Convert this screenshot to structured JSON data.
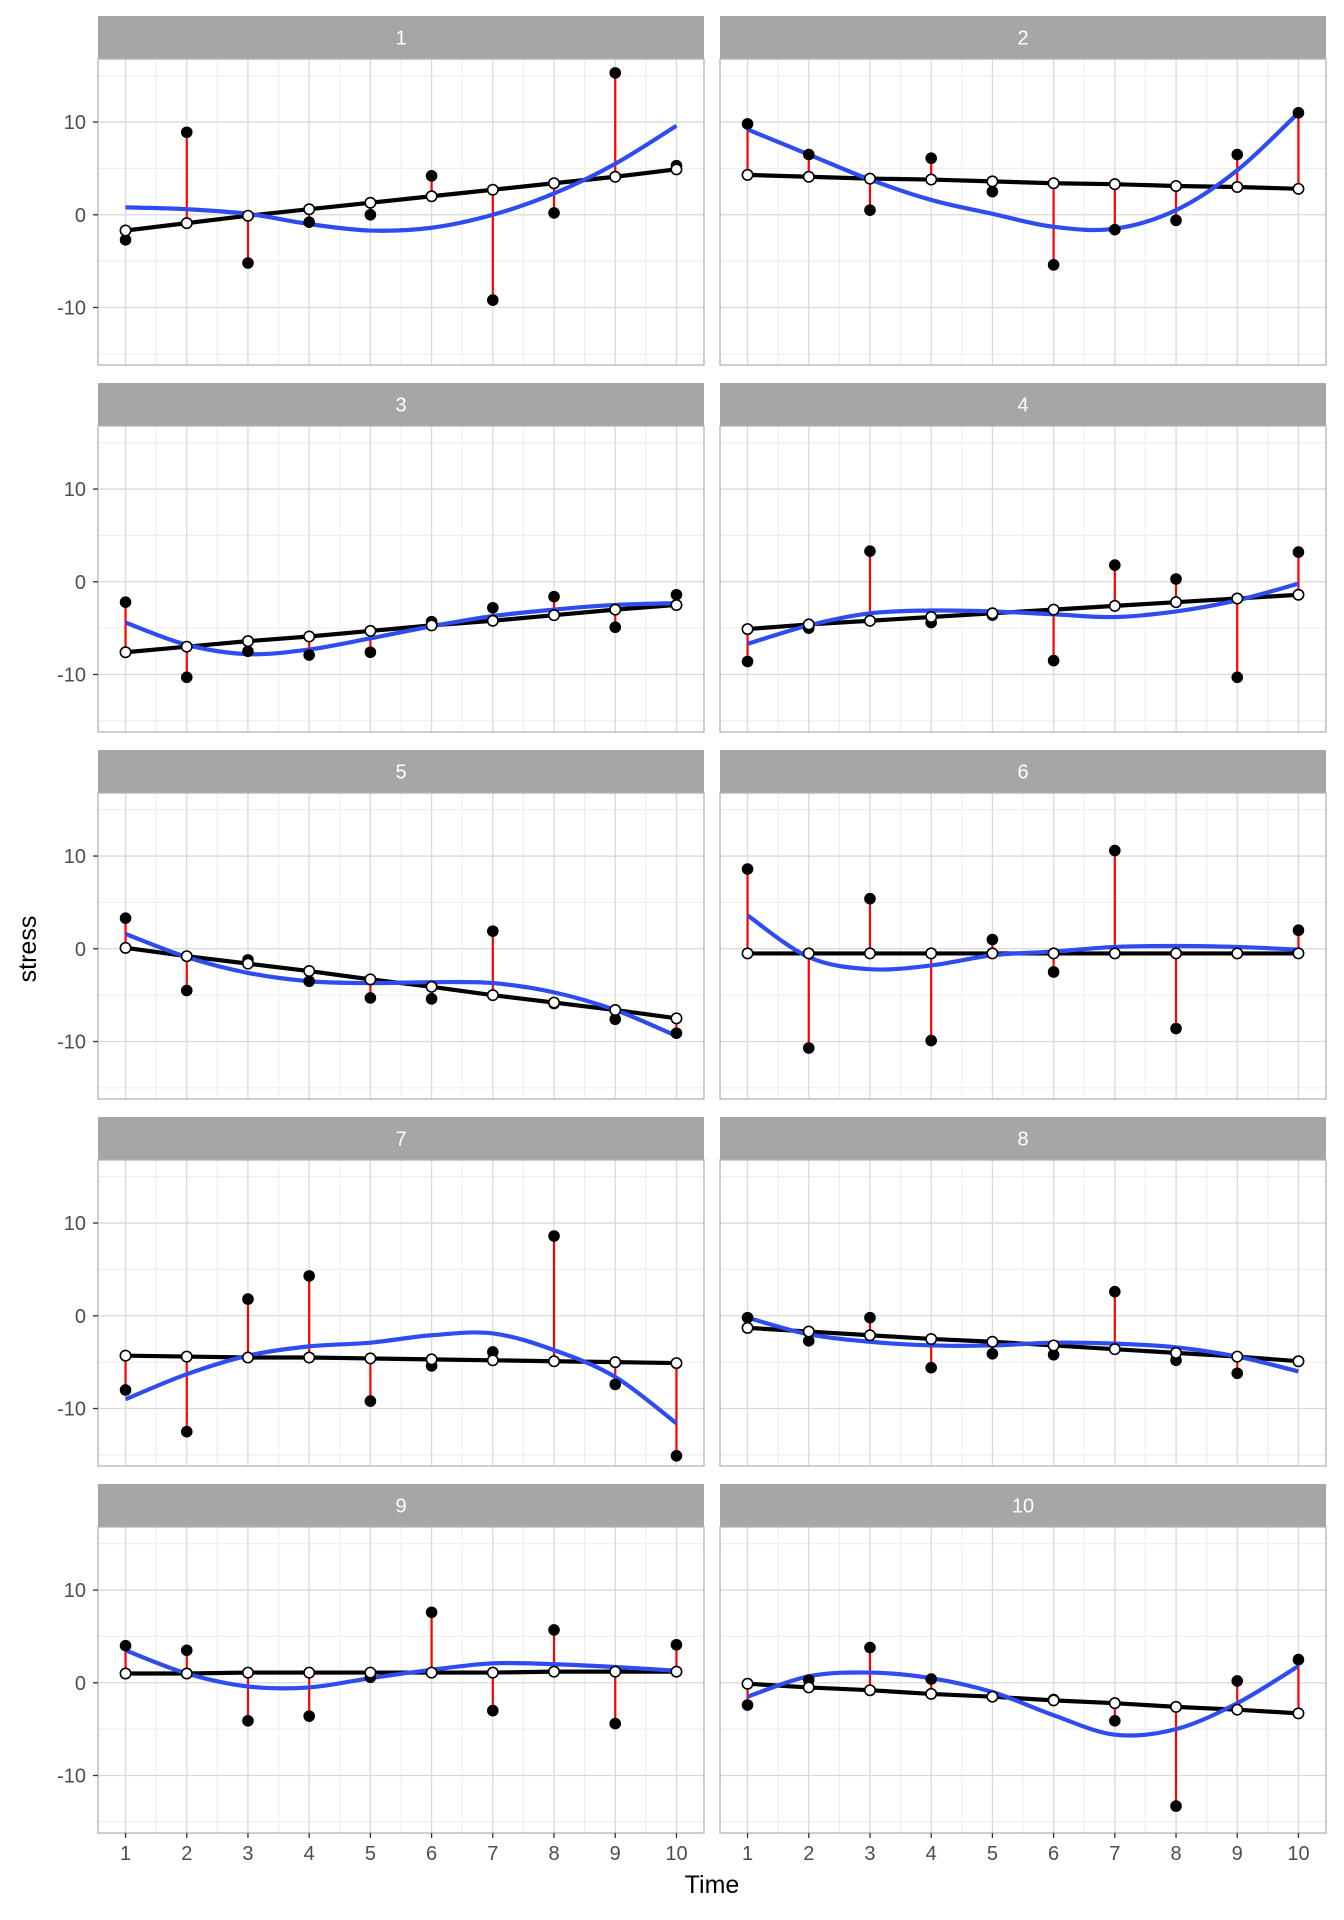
{
  "chart_data": {
    "type": "faceted_scatter_line",
    "xlabel": "Time",
    "ylabel": "stress",
    "x_ticks": [
      1,
      2,
      3,
      4,
      5,
      6,
      7,
      8,
      9,
      10
    ],
    "y_ticks": [
      -10,
      0,
      10
    ],
    "xlim": [
      0.55,
      10.45
    ],
    "ylim": [
      -16.2,
      16.8
    ],
    "grid": true,
    "colors": {
      "strip_background": "#a6a6a6",
      "strip_text": "#ffffff",
      "panel_border": "#b3b3b3",
      "grid_major": "#d9d9d9",
      "grid_minor": "#ececec",
      "residual_line": "#ff0000",
      "fitted_line": "#000000",
      "smooth_curve": "#2f4cf0",
      "observed_point": "#000000",
      "fitted_point_fill": "#ffffff"
    },
    "facets": [
      {
        "label": "1",
        "observed": [
          -2.7,
          8.9,
          -5.2,
          -0.8,
          0.0,
          4.2,
          -9.2,
          0.2,
          15.3,
          5.3
        ],
        "fitted": [
          -1.7,
          -0.9,
          -0.1,
          0.6,
          1.3,
          2.0,
          2.7,
          3.4,
          4.1,
          4.9
        ],
        "smooth": [
          0.8,
          0.6,
          0.1,
          -1.0,
          -1.7,
          -1.4,
          0.0,
          2.3,
          5.5,
          9.6
        ]
      },
      {
        "label": "2",
        "observed": [
          9.8,
          6.5,
          0.5,
          6.1,
          2.5,
          -5.4,
          -1.6,
          -0.6,
          6.5,
          11.0
        ],
        "fitted": [
          4.3,
          4.1,
          3.9,
          3.8,
          3.6,
          3.4,
          3.3,
          3.1,
          3.0,
          2.8
        ],
        "smooth": [
          9.2,
          6.5,
          3.8,
          1.6,
          0.1,
          -1.3,
          -1.5,
          0.5,
          4.8,
          11.0
        ]
      },
      {
        "label": "3",
        "observed": [
          -2.2,
          -10.3,
          -7.5,
          -7.9,
          -7.6,
          -4.3,
          -2.8,
          -1.6,
          -4.9,
          -1.4
        ],
        "fitted": [
          -7.6,
          -7.0,
          -6.4,
          -5.9,
          -5.3,
          -4.7,
          -4.2,
          -3.6,
          -3.0,
          -2.5
        ],
        "smooth": [
          -4.4,
          -6.8,
          -7.8,
          -7.3,
          -6.1,
          -4.8,
          -3.7,
          -3.0,
          -2.5,
          -2.3
        ]
      },
      {
        "label": "4",
        "observed": [
          -8.6,
          -5.0,
          3.3,
          -4.4,
          -3.6,
          -8.5,
          1.8,
          0.3,
          -10.3,
          3.2
        ],
        "fitted": [
          -5.1,
          -4.6,
          -4.2,
          -3.8,
          -3.4,
          -3.0,
          -2.6,
          -2.2,
          -1.8,
          -1.4
        ],
        "smooth": [
          -6.7,
          -4.7,
          -3.4,
          -3.1,
          -3.2,
          -3.5,
          -3.8,
          -3.2,
          -2.0,
          -0.2
        ]
      },
      {
        "label": "5",
        "observed": [
          3.3,
          -4.5,
          -1.2,
          -3.5,
          -5.3,
          -5.4,
          1.9,
          -5.9,
          -7.6,
          -9.1
        ],
        "fitted": [
          0.1,
          -0.8,
          -1.6,
          -2.4,
          -3.3,
          -4.1,
          -5.0,
          -5.8,
          -6.6,
          -7.5
        ],
        "smooth": [
          1.6,
          -0.9,
          -2.6,
          -3.5,
          -3.7,
          -3.6,
          -3.7,
          -4.7,
          -6.6,
          -9.4
        ]
      },
      {
        "label": "6",
        "observed": [
          8.6,
          -10.7,
          5.4,
          -9.9,
          1.0,
          -2.5,
          10.6,
          -8.6,
          -0.5,
          2.0
        ],
        "fitted": [
          -0.5,
          -0.5,
          -0.5,
          -0.5,
          -0.5,
          -0.5,
          -0.5,
          -0.5,
          -0.5,
          -0.5
        ],
        "smooth": [
          3.6,
          -0.9,
          -2.2,
          -1.8,
          -0.7,
          -0.3,
          0.2,
          0.3,
          0.2,
          -0.1
        ]
      },
      {
        "label": "7",
        "observed": [
          -8.0,
          -12.5,
          1.8,
          4.3,
          -9.2,
          -5.4,
          -3.9,
          8.6,
          -7.4,
          -15.1
        ],
        "fitted": [
          -4.3,
          -4.4,
          -4.5,
          -4.5,
          -4.6,
          -4.7,
          -4.8,
          -4.9,
          -5.0,
          -5.1
        ],
        "smooth": [
          -9.0,
          -6.3,
          -4.3,
          -3.3,
          -2.9,
          -2.1,
          -1.9,
          -3.7,
          -6.6,
          -11.6
        ]
      },
      {
        "label": "8",
        "observed": [
          -0.2,
          -2.7,
          -0.2,
          -5.6,
          -4.1,
          -4.2,
          2.6,
          -4.8,
          -6.2,
          -4.9
        ],
        "fitted": [
          -1.3,
          -1.7,
          -2.1,
          -2.5,
          -2.8,
          -3.2,
          -3.6,
          -4.0,
          -4.4,
          -4.9
        ],
        "smooth": [
          -0.2,
          -2.0,
          -2.8,
          -3.2,
          -3.2,
          -2.9,
          -3.0,
          -3.4,
          -4.4,
          -6.0
        ]
      },
      {
        "label": "9",
        "observed": [
          4.0,
          3.5,
          -4.1,
          -3.6,
          0.6,
          7.6,
          -3.0,
          5.7,
          -4.4,
          4.1
        ],
        "fitted": [
          1.0,
          1.0,
          1.1,
          1.1,
          1.1,
          1.1,
          1.1,
          1.2,
          1.2,
          1.2
        ],
        "smooth": [
          3.5,
          1.0,
          -0.4,
          -0.5,
          0.5,
          1.4,
          2.1,
          2.0,
          1.7,
          1.3
        ]
      },
      {
        "label": "10",
        "observed": [
          -2.4,
          0.3,
          3.8,
          0.4,
          -1.5,
          -1.8,
          -4.1,
          -13.3,
          0.2,
          2.5
        ],
        "fitted": [
          -0.1,
          -0.5,
          -0.8,
          -1.2,
          -1.5,
          -1.9,
          -2.2,
          -2.6,
          -2.9,
          -3.3
        ],
        "smooth": [
          -1.5,
          0.7,
          1.1,
          0.5,
          -1.0,
          -3.5,
          -5.6,
          -5.0,
          -2.2,
          1.8
        ]
      }
    ]
  }
}
